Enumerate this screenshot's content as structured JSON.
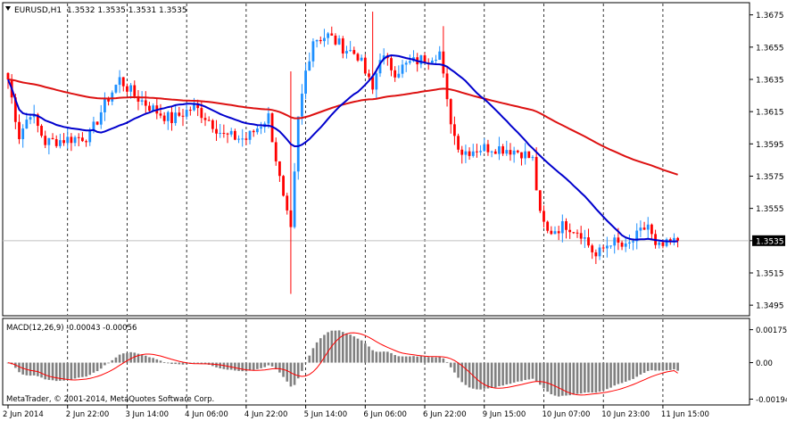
{
  "window": {
    "title": "EURUSD,H1",
    "ohlc": "1.3532 1.3535 1.3531 1.3535",
    "menu_icon": "triangle-down-icon"
  },
  "colors": {
    "background": "#FFFFFF",
    "bull": "#1E90FF",
    "bear": "#FF0000",
    "ma_fast": "#0000CD",
    "ma_slow": "#DD1111",
    "grid": "#000000",
    "current_price_line": "#C0C0C0",
    "macd_hist": "#808080",
    "macd_signal": "#FF0000"
  },
  "indicator": {
    "label": "MACD(12,26,9) -0.00043 -0.00056"
  },
  "footer": {
    "copyright": "MetaTrader, © 2001-2014, MetaQuotes Software Corp."
  },
  "chart_data": {
    "type": "candlestick",
    "symbol": "EURUSD",
    "timeframe": "H1",
    "current_price": 1.3535,
    "y_ticks": [
      "1.3675",
      "1.3655",
      "1.3635",
      "1.3615",
      "1.3595",
      "1.3575",
      "1.3555",
      "1.3535",
      "1.3515",
      "1.3495"
    ],
    "y_tick_values": [
      1.3675,
      1.3655,
      1.3635,
      1.3615,
      1.3595,
      1.3575,
      1.3555,
      1.3535,
      1.3515,
      1.3495
    ],
    "ylim": [
      1.3489,
      1.3682
    ],
    "x_labels": [
      "2 Jun 2014",
      "2 Jun 22:00",
      "3 Jun 14:00",
      "4 Jun 06:00",
      "4 Jun 22:00",
      "5 Jun 14:00",
      "6 Jun 06:00",
      "6 Jun 22:00",
      "9 Jun 15:00",
      "10 Jun 07:00",
      "10 Jun 23:00",
      "11 Jun 15:00"
    ],
    "x_label_bars": [
      0,
      16,
      32,
      48,
      64,
      80,
      96,
      112,
      128,
      144,
      160,
      176
    ],
    "grid": "vertical dashed",
    "series": [
      {
        "name": "",
        "kind": "ma_fast"
      },
      {
        "name": "",
        "kind": "ma_slow"
      }
    ],
    "macd": {
      "params": "12,26,9",
      "main": -0.00043,
      "signal": -0.00056,
      "y_ticks": [
        "0.00175",
        "0.00",
        "-0.00194"
      ],
      "y_tick_values": [
        0.00175,
        0,
        -0.00194
      ],
      "ylim": [
        -0.0022,
        0.0023
      ]
    }
  }
}
